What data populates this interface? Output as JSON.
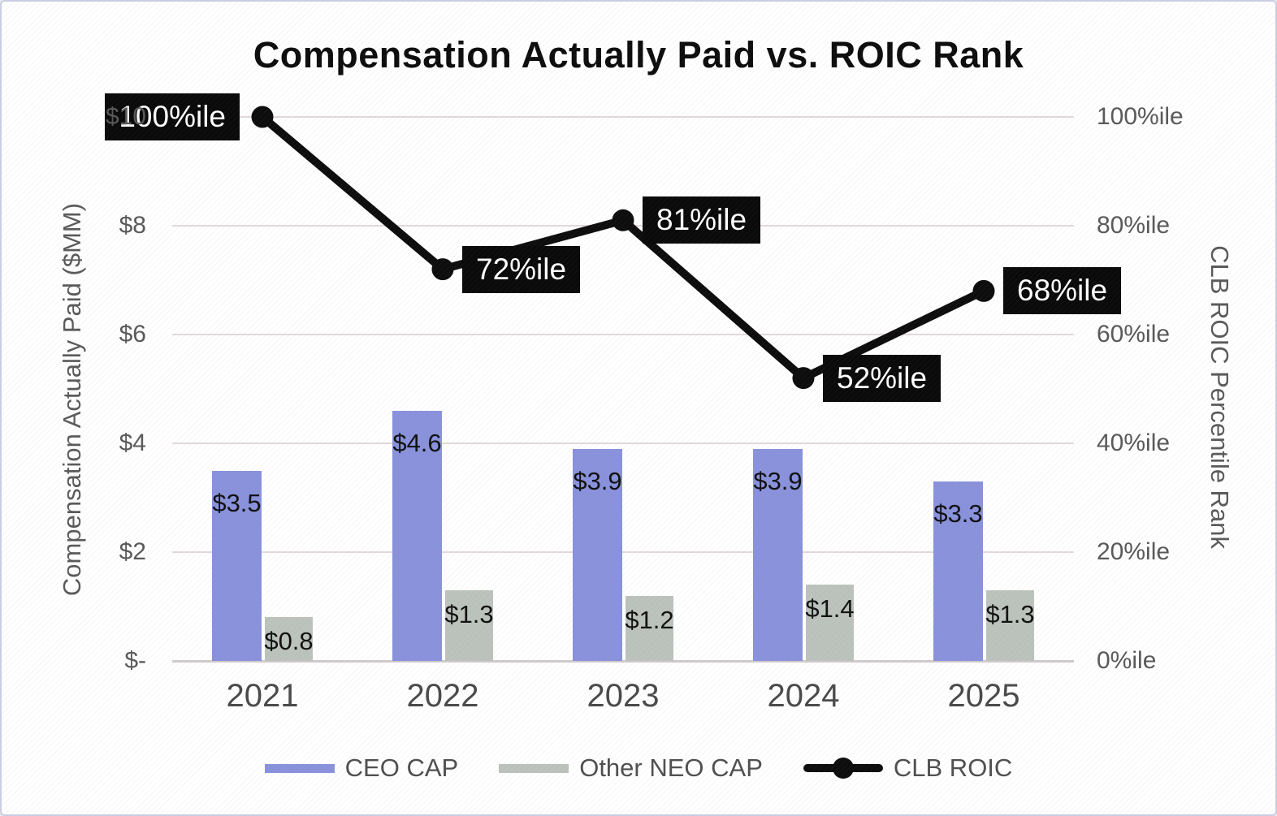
{
  "chart_data": {
    "type": "bar+line combo",
    "title": "Compensation Actually Paid vs. ROIC Rank",
    "categories": [
      "2021",
      "2022",
      "2023",
      "2024",
      "2025"
    ],
    "series": [
      {
        "name": "CEO CAP",
        "type": "bar",
        "axis": "left",
        "values": [
          3.5,
          4.6,
          3.9,
          3.9,
          3.3
        ],
        "data_labels": [
          "$3.5",
          "$4.6",
          "$3.9",
          "$3.9",
          "$3.3"
        ],
        "color": "#8992db"
      },
      {
        "name": "Other NEO CAP",
        "type": "bar",
        "axis": "left",
        "values": [
          0.8,
          1.3,
          1.2,
          1.4,
          1.3
        ],
        "data_labels": [
          "$0.8",
          "$1.3",
          "$1.2",
          "$1.4",
          "$1.3"
        ],
        "color": "#bcc3bc"
      },
      {
        "name": "CLB ROIC",
        "type": "line",
        "axis": "right",
        "values": [
          100,
          72,
          81,
          52,
          68
        ],
        "data_labels": [
          "100%ile",
          "72%ile",
          "81%ile",
          "52%ile",
          "68%ile"
        ],
        "color": "#0d0d0d"
      }
    ],
    "left_axis": {
      "title": "Compensation Actually Paid ($MM)",
      "ticks": [
        "$-",
        "$2",
        "$4",
        "$6",
        "$8",
        "$10"
      ],
      "range": [
        0,
        10
      ]
    },
    "right_axis": {
      "title": "CLB ROIC Percentile Rank",
      "ticks": [
        "0%ile",
        "20%ile",
        "40%ile",
        "60%ile",
        "80%ile",
        "100%ile"
      ],
      "range": [
        0,
        100
      ]
    },
    "legend_position": "bottom",
    "grid": true,
    "colors": {
      "gridline": "#e3d9da",
      "axis_line": "#d2cbcd",
      "label_box_bg": "#0a0a0a",
      "label_box_text": "#ffffff"
    }
  }
}
